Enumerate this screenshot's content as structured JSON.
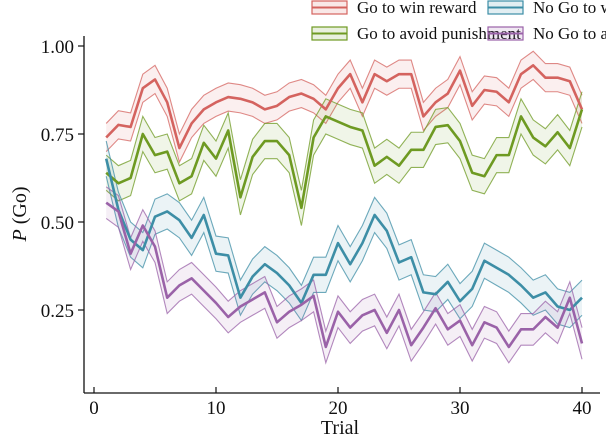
{
  "chart_data": {
    "type": "line",
    "title": "",
    "xlabel": "Trial",
    "ylabel_italic": "P",
    "ylabel_rest": " (Go)",
    "xlim": [
      -1,
      41.5
    ],
    "ylim": [
      0.017,
      1.03
    ],
    "xticks": [
      0,
      10,
      20,
      30,
      40
    ],
    "xtick_labels": [
      "0",
      "10",
      "20",
      "30",
      "40"
    ],
    "yticks": [
      0.25,
      0.5,
      0.75,
      1.0
    ],
    "ytick_labels": [
      "0.25",
      "0.50",
      "0.75",
      "1.00"
    ],
    "grid": false,
    "legend_placement": "top",
    "x": [
      1,
      2,
      3,
      4,
      5,
      6,
      7,
      8,
      9,
      10,
      11,
      12,
      13,
      14,
      15,
      16,
      17,
      18,
      19,
      20,
      21,
      22,
      23,
      24,
      25,
      26,
      27,
      28,
      29,
      30,
      31,
      32,
      33,
      34,
      35,
      36,
      37,
      38,
      39,
      40
    ],
    "series": [
      {
        "name": "Go to win reward",
        "color": "#d4635f",
        "band": 0.04,
        "values": [
          0.74,
          0.776,
          0.77,
          0.88,
          0.905,
          0.84,
          0.71,
          0.78,
          0.82,
          0.84,
          0.855,
          0.85,
          0.84,
          0.82,
          0.83,
          0.855,
          0.865,
          0.85,
          0.82,
          0.88,
          0.92,
          0.84,
          0.92,
          0.9,
          0.92,
          0.92,
          0.8,
          0.84,
          0.865,
          0.93,
          0.83,
          0.875,
          0.87,
          0.84,
          0.92,
          0.945,
          0.91,
          0.91,
          0.9,
          0.82
        ]
      },
      {
        "name": "Go to avoid punishment",
        "color": "#6e9a22",
        "band": 0.05,
        "values": [
          0.64,
          0.61,
          0.625,
          0.75,
          0.69,
          0.7,
          0.61,
          0.63,
          0.725,
          0.68,
          0.76,
          0.57,
          0.685,
          0.73,
          0.73,
          0.69,
          0.54,
          0.74,
          0.8,
          0.785,
          0.77,
          0.76,
          0.66,
          0.685,
          0.66,
          0.705,
          0.705,
          0.77,
          0.775,
          0.73,
          0.64,
          0.63,
          0.69,
          0.69,
          0.8,
          0.74,
          0.715,
          0.755,
          0.71,
          0.82
        ]
      },
      {
        "name": "No Go to win reward",
        "color": "#3d8ea6",
        "band": 0.05,
        "values": [
          0.68,
          0.535,
          0.45,
          0.42,
          0.515,
          0.53,
          0.505,
          0.455,
          0.52,
          0.41,
          0.405,
          0.285,
          0.345,
          0.38,
          0.355,
          0.32,
          0.27,
          0.35,
          0.35,
          0.44,
          0.38,
          0.44,
          0.52,
          0.475,
          0.385,
          0.4,
          0.3,
          0.295,
          0.33,
          0.275,
          0.31,
          0.39,
          0.37,
          0.35,
          0.32,
          0.285,
          0.3,
          0.26,
          0.25,
          0.285
        ]
      },
      {
        "name": "No Go to avoid punishment",
        "color": "#9a62a8",
        "band": 0.045,
        "values": [
          0.555,
          0.53,
          0.41,
          0.49,
          0.43,
          0.285,
          0.32,
          0.34,
          0.305,
          0.27,
          0.23,
          0.26,
          0.28,
          0.3,
          0.215,
          0.245,
          0.265,
          0.29,
          0.145,
          0.245,
          0.2,
          0.235,
          0.25,
          0.185,
          0.25,
          0.15,
          0.2,
          0.255,
          0.195,
          0.22,
          0.15,
          0.215,
          0.2,
          0.145,
          0.195,
          0.195,
          0.23,
          0.2,
          0.285,
          0.155
        ]
      }
    ]
  }
}
